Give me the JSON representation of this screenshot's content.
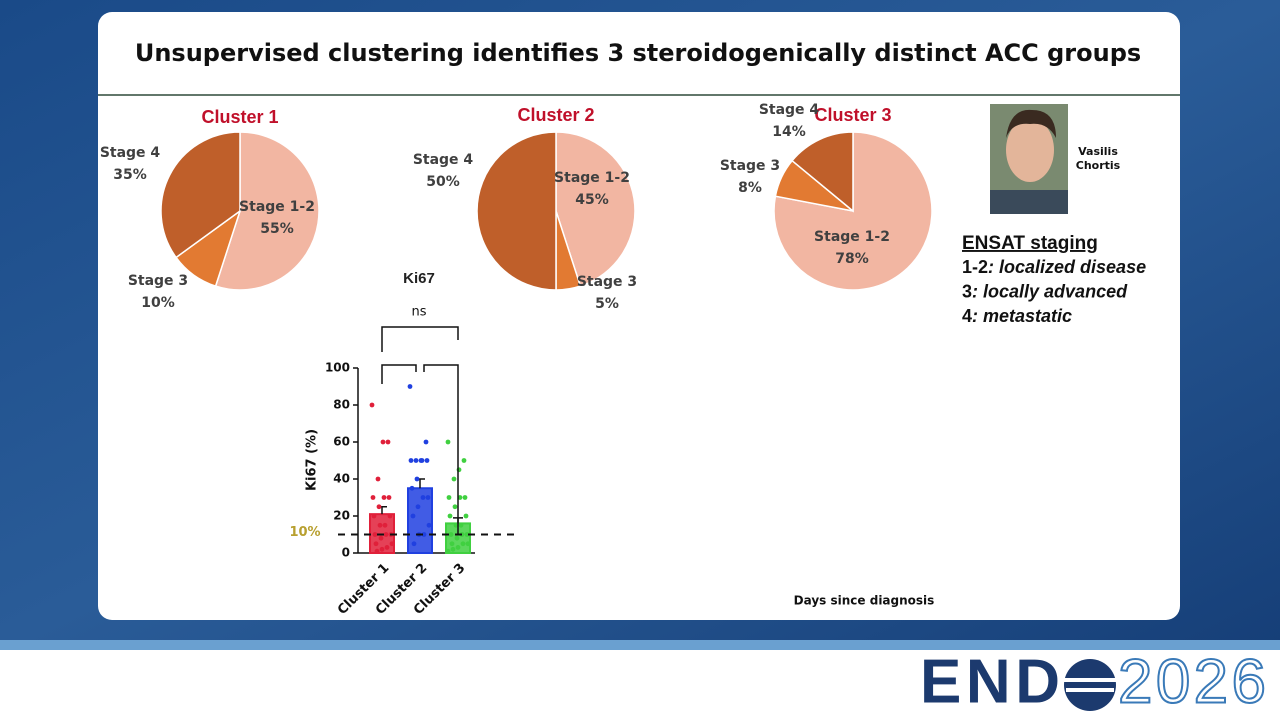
{
  "slide": {
    "title": "Unsupervised clustering identifies 3 steroidogenically distinct ACC groups",
    "speaker_lines": [
      "Vasilis",
      "Chortis"
    ],
    "staging": {
      "heading": "ENSAT staging",
      "items": [
        {
          "stage": "1-2",
          "desc": ": localized disease"
        },
        {
          "stage": "3",
          "desc": ": locally advanced"
        },
        {
          "stage": "4",
          "desc": ": metastatic"
        }
      ]
    },
    "footer_label": "Days since diagnosis",
    "logo": {
      "left": "END",
      "right": "2026"
    }
  },
  "chart_data": [
    {
      "type": "pie",
      "title": "Cluster 1",
      "categories": [
        "Stage 1-2",
        "Stage 3",
        "Stage 4"
      ],
      "values": [
        55,
        10,
        35
      ],
      "value_labels": [
        "55%",
        "10%",
        "35%"
      ],
      "colors": [
        "#f2b6a2",
        "#e27a32",
        "#bf5f2a"
      ]
    },
    {
      "type": "pie",
      "title": "Cluster 2",
      "categories": [
        "Stage 1-2",
        "Stage 3",
        "Stage 4"
      ],
      "values": [
        45,
        5,
        50
      ],
      "value_labels": [
        "45%",
        "5%",
        "50%"
      ],
      "colors": [
        "#f2b6a2",
        "#e27a32",
        "#bf5f2a"
      ]
    },
    {
      "type": "pie",
      "title": "Cluster 3",
      "categories": [
        "Stage 1-2",
        "Stage 3",
        "Stage 4"
      ],
      "values": [
        78,
        8,
        14
      ],
      "value_labels": [
        "78%",
        "8%",
        "14%"
      ],
      "colors": [
        "#f2b6a2",
        "#e27a32",
        "#bf5f2a"
      ]
    },
    {
      "type": "bar",
      "title": "Ki67",
      "y_label": "Ki67 (%)",
      "categories": [
        "Cluster 1",
        "Cluster 2",
        "Cluster 3"
      ],
      "values": [
        21,
        35,
        16
      ],
      "errors": [
        4,
        5,
        3
      ],
      "colors": [
        "#e0203a",
        "#2040e0",
        "#40d040"
      ],
      "points": [
        [
          80,
          60,
          60,
          40,
          30,
          30,
          30,
          25,
          20,
          20,
          15,
          15,
          10,
          10,
          10,
          8,
          5,
          5,
          3,
          2,
          1
        ],
        [
          90,
          60,
          50,
          50,
          50,
          50,
          50,
          40,
          35,
          30,
          30,
          25,
          20,
          15,
          10,
          10,
          5
        ],
        [
          60,
          50,
          45,
          40,
          30,
          30,
          30,
          25,
          20,
          20,
          15,
          15,
          10,
          10,
          10,
          8,
          5,
          5,
          5,
          3,
          2,
          1
        ]
      ],
      "ylim": [
        0,
        100
      ],
      "yticks": [
        0,
        20,
        40,
        60,
        80,
        100
      ],
      "reference": {
        "value": 10,
        "label": "10%"
      },
      "significance": "ns"
    }
  ]
}
